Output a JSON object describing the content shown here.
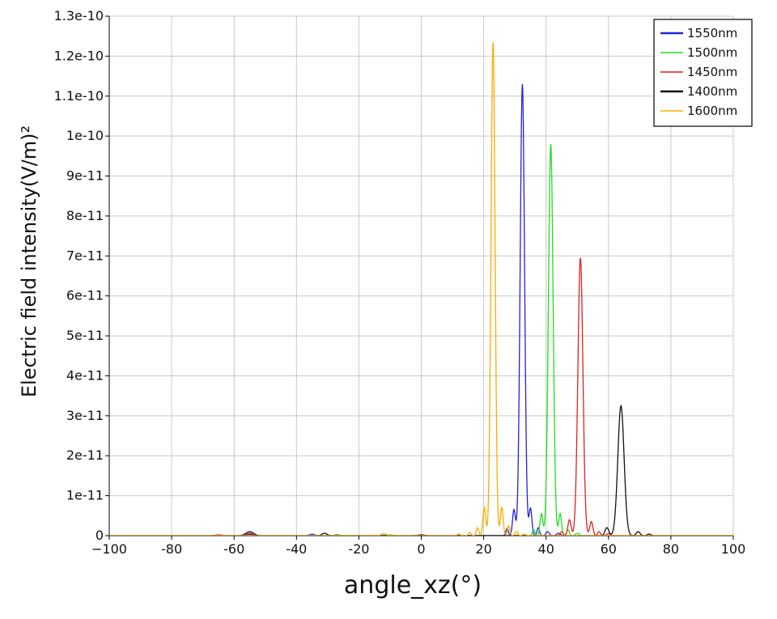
{
  "chart_data": {
    "type": "line",
    "xlabel": "angle_xz(°)",
    "ylabel": "Electric field intensity(V/m)²",
    "xlim": [
      -100,
      100
    ],
    "ylim": [
      0,
      1.3e-10
    ],
    "grid": true,
    "legend_position": "top-right",
    "x_ticks": [
      -100,
      -80,
      -60,
      -40,
      -20,
      0,
      20,
      40,
      60,
      80,
      100
    ],
    "x_tick_labels": [
      "−100",
      "-80",
      "-60",
      "-40",
      "-20",
      "0",
      "20",
      "40",
      "60",
      "80",
      "100"
    ],
    "y_ticks": [
      0,
      1e-11,
      2e-11,
      3e-11,
      4e-11,
      5e-11,
      6e-11,
      7e-11,
      8e-11,
      9e-11,
      1e-10,
      1.1e-10,
      1.2e-10,
      1.3e-10
    ],
    "y_tick_labels": [
      "0",
      "1e-11",
      "2e-11",
      "3e-11",
      "4e-11",
      "5e-11",
      "6e-11",
      "7e-11",
      "8e-11",
      "9e-11",
      "1e-10",
      "1.1e-10",
      "1.2e-10",
      "1.3e-10"
    ],
    "series": [
      {
        "name": "1550nm",
        "color": "#2222dd",
        "peaks": [
          {
            "x": 32.4,
            "y": 1.13e-10,
            "w": 0.7
          },
          {
            "x": 29.7,
            "y": 6.5e-12,
            "w": 0.45
          },
          {
            "x": 35.0,
            "y": 6.8e-12,
            "w": 0.45
          },
          {
            "x": 27.5,
            "y": 1.8e-12,
            "w": 0.4
          },
          {
            "x": 37.5,
            "y": 2e-12,
            "w": 0.4
          },
          {
            "x": 40.5,
            "y": 1e-12,
            "w": 0.5
          },
          {
            "x": 44.0,
            "y": 6e-13,
            "w": 0.6
          },
          {
            "x": -35.0,
            "y": 3.5e-13,
            "w": 0.8
          },
          {
            "x": -55.0,
            "y": 3e-13,
            "w": 1.0
          }
        ]
      },
      {
        "name": "1500nm",
        "color": "#22dd22",
        "peaks": [
          {
            "x": 41.5,
            "y": 9.8e-11,
            "w": 0.75
          },
          {
            "x": 38.5,
            "y": 5.5e-12,
            "w": 0.45
          },
          {
            "x": 44.5,
            "y": 5.5e-12,
            "w": 0.45
          },
          {
            "x": 36.0,
            "y": 1.5e-12,
            "w": 0.4
          },
          {
            "x": 47.0,
            "y": 1.5e-12,
            "w": 0.4
          },
          {
            "x": 50.0,
            "y": 6e-13,
            "w": 0.6
          },
          {
            "x": -27.0,
            "y": 3e-13,
            "w": 0.7
          },
          {
            "x": -10.0,
            "y": 2e-13,
            "w": 0.8
          }
        ]
      },
      {
        "name": "1450nm",
        "color": "#dd2222",
        "peaks": [
          {
            "x": 51.0,
            "y": 6.95e-11,
            "w": 0.8
          },
          {
            "x": 47.5,
            "y": 4e-12,
            "w": 0.5
          },
          {
            "x": 54.5,
            "y": 3.5e-12,
            "w": 0.5
          },
          {
            "x": 45.0,
            "y": 1e-12,
            "w": 0.45
          },
          {
            "x": 57.0,
            "y": 1e-12,
            "w": 0.45
          },
          {
            "x": 60.0,
            "y": 5e-13,
            "w": 0.6
          },
          {
            "x": -55.0,
            "y": 6e-13,
            "w": 1.0
          },
          {
            "x": -65.0,
            "y": 2e-13,
            "w": 1.0
          }
        ]
      },
      {
        "name": "1400nm",
        "color": "#111111",
        "peaks": [
          {
            "x": 64.0,
            "y": 3.25e-11,
            "w": 1.0
          },
          {
            "x": 59.5,
            "y": 2e-12,
            "w": 0.6
          },
          {
            "x": 69.5,
            "y": 1e-12,
            "w": 0.6
          },
          {
            "x": 73.0,
            "y": 4e-13,
            "w": 0.6
          },
          {
            "x": -55.0,
            "y": 1e-12,
            "w": 1.2
          },
          {
            "x": -31.0,
            "y": 6e-13,
            "w": 0.8
          },
          {
            "x": 0.0,
            "y": 2e-13,
            "w": 1.0
          }
        ]
      },
      {
        "name": "1600nm",
        "color": "#ffaa00",
        "peaks": [
          {
            "x": 23.0,
            "y": 1.235e-10,
            "w": 0.65
          },
          {
            "x": 20.2,
            "y": 7e-12,
            "w": 0.45
          },
          {
            "x": 25.8,
            "y": 7e-12,
            "w": 0.45
          },
          {
            "x": 18.0,
            "y": 2e-12,
            "w": 0.4
          },
          {
            "x": 28.0,
            "y": 2.5e-12,
            "w": 0.4
          },
          {
            "x": 15.5,
            "y": 8e-13,
            "w": 0.45
          },
          {
            "x": 30.5,
            "y": 1e-12,
            "w": 0.45
          },
          {
            "x": 12.0,
            "y": 4e-13,
            "w": 0.5
          },
          {
            "x": 33.0,
            "y": 4e-13,
            "w": 0.5
          },
          {
            "x": -12.0,
            "y": 5e-13,
            "w": 0.8
          }
        ]
      }
    ]
  }
}
